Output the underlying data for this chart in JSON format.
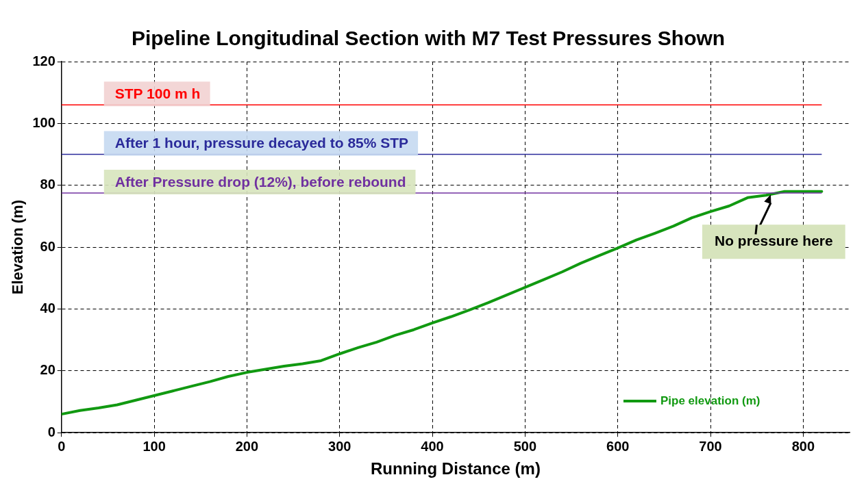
{
  "chart_data": {
    "type": "line",
    "title": "Pipeline Longitudinal Section with M7 Test Pressures Shown",
    "xlabel": "Running Distance (m)",
    "ylabel": "Elevation (m)",
    "x": [
      0,
      20,
      40,
      60,
      80,
      100,
      120,
      140,
      160,
      180,
      200,
      220,
      240,
      260,
      280,
      300,
      320,
      340,
      360,
      380,
      400,
      420,
      440,
      460,
      480,
      500,
      520,
      540,
      560,
      580,
      600,
      620,
      640,
      660,
      680,
      700,
      720,
      740,
      760,
      780,
      800,
      820
    ],
    "series": [
      {
        "name": "Pipe elevation (m)",
        "color": "#119911",
        "values": [
          6,
          7.2,
          8,
          9,
          10.5,
          12,
          13.5,
          15,
          16.5,
          18.2,
          19.5,
          20.5,
          21.5,
          22.3,
          23.3,
          25.5,
          27.5,
          29.3,
          31.5,
          33.3,
          35.5,
          37.5,
          39.7,
          42,
          44.5,
          47,
          49.5,
          52,
          54.8,
          57.3,
          59.7,
          62.3,
          64.5,
          66.8,
          69.5,
          71.5,
          73.3,
          76,
          76.8,
          78,
          78,
          78
        ]
      }
    ],
    "xlim": [
      0,
      850
    ],
    "xticks": [
      0,
      100,
      200,
      300,
      400,
      500,
      600,
      700,
      800
    ],
    "ylim": [
      0,
      120
    ],
    "yticks": [
      0,
      20,
      40,
      60,
      80,
      100,
      120
    ],
    "grid": true,
    "legend": "bottom right",
    "marker": "none",
    "line_style": "solid",
    "ref_lines": [
      {
        "axis": "y",
        "value": 106,
        "label": "STP 100 m h",
        "color": "#ff0000"
      },
      {
        "axis": "y",
        "value": 90,
        "label": "After 1 hour, pressure decayed to 85% STP",
        "color": "#2a2a9a"
      },
      {
        "axis": "y",
        "value": 77.5,
        "label": "After Pressure drop (12%), before rebound",
        "color": "#7030a0"
      }
    ],
    "annotations": [
      {
        "text": "No pressure here",
        "x": 765,
        "y": 77
      }
    ]
  }
}
